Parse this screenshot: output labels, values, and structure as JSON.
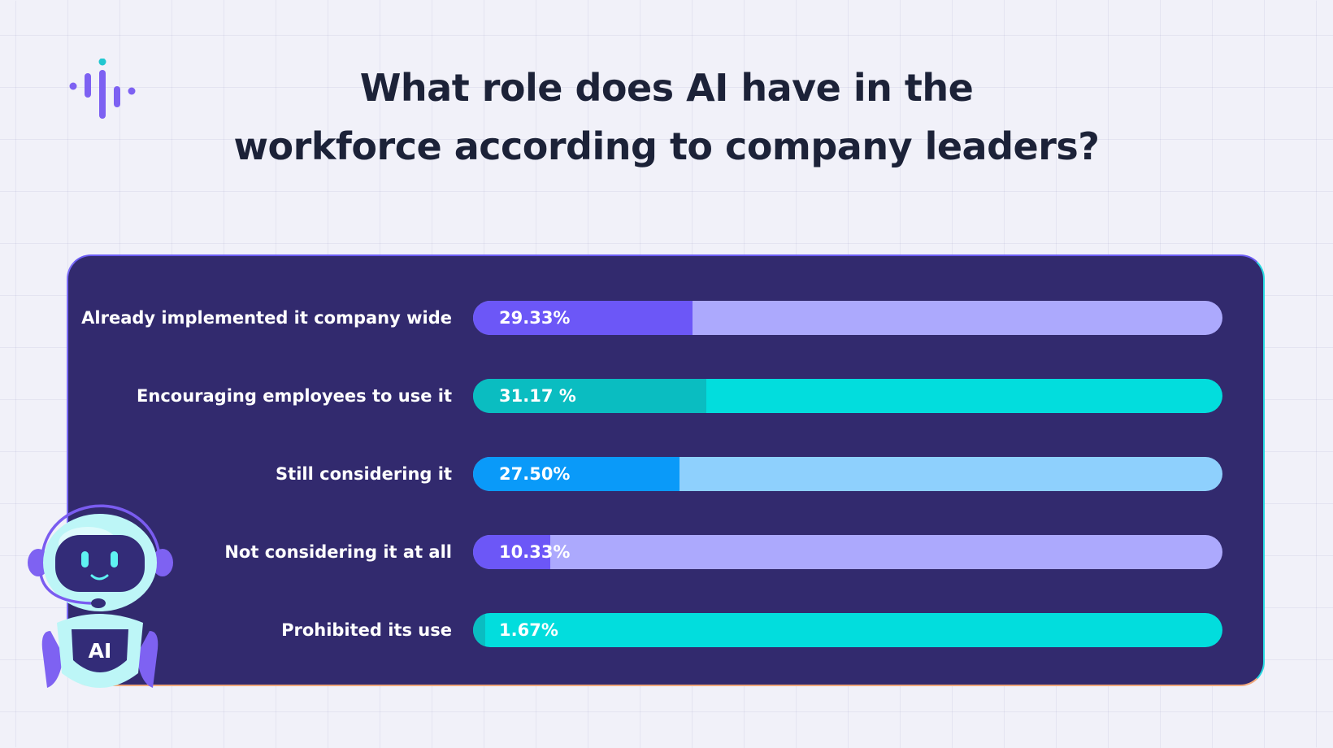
{
  "title_lines": [
    "What role does AI have in the",
    "workforce according to company leaders?"
  ],
  "robot_badge_text": "AI",
  "colors": {
    "background": "#f1f1f9",
    "panel": "#322a6e",
    "title": "#1c2238",
    "logo_purple": "#7d61f2",
    "logo_teal": "#22c7d0"
  },
  "chart_data": {
    "type": "bar",
    "orientation": "horizontal",
    "title": "What role does AI have in the workforce according to company leaders?",
    "categories": [
      "Already implemented it company wide",
      "Encouraging employees to use it",
      "Still considering it",
      "Not considering it at all",
      "Prohibited its use"
    ],
    "values": [
      29.33,
      31.17,
      27.5,
      10.33,
      1.67
    ],
    "value_labels": [
      "29.33%",
      "31.17 %",
      "27.50%",
      "10.33%",
      "1.67%"
    ],
    "xlim": [
      0,
      100
    ],
    "grid": false,
    "legend": "none",
    "bar_colors": [
      {
        "fill": "#6c57f7",
        "track": "#aca9fd"
      },
      {
        "fill": "#0abdc1",
        "track": "#02dddd"
      },
      {
        "fill": "#0a9af9",
        "track": "#8ed0fd"
      },
      {
        "fill": "#6c57f7",
        "track": "#aca9fd"
      },
      {
        "fill": "#0abdc1",
        "track": "#02dddd"
      }
    ]
  }
}
